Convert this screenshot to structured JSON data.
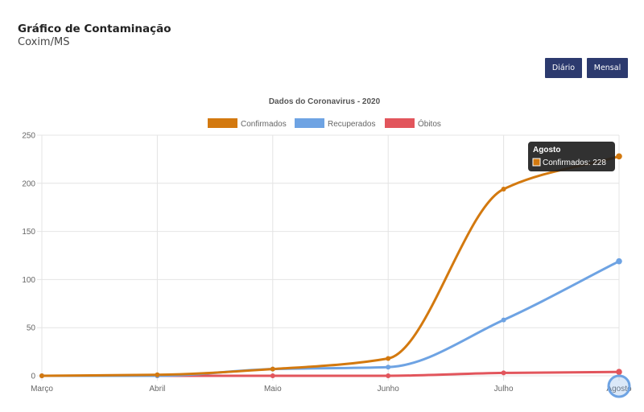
{
  "header": {
    "title": "Gráfico de Contaminação",
    "subtitle": "Coxim/MS"
  },
  "buttons": {
    "daily_label": "Diário",
    "monthly_label": "Mensal"
  },
  "colors": {
    "confirmados": "#d3790f",
    "recuperados": "#6ea3e3",
    "obitos": "#e2555c",
    "button_bg": "#2c3a6e",
    "tooltip_bg": "#1f1f1f"
  },
  "chart_data": {
    "type": "line",
    "title": "Dados do Coronavirus - 2020",
    "categories": [
      "Março",
      "Abril",
      "Maio",
      "Junho",
      "Julho",
      "Agosto"
    ],
    "series": [
      {
        "name": "Confirmados",
        "color": "#d3790f",
        "values": [
          0,
          1,
          7,
          18,
          194,
          228
        ]
      },
      {
        "name": "Recuperados",
        "color": "#6ea3e3",
        "values": [
          0,
          0,
          7,
          9,
          58,
          119
        ]
      },
      {
        "name": "Óbitos",
        "color": "#e2555c",
        "values": [
          0,
          0,
          0,
          0,
          3,
          4
        ]
      }
    ],
    "ylim": [
      0,
      250
    ],
    "yticks": [
      0,
      50,
      100,
      150,
      200,
      250
    ],
    "grid": true,
    "legend_position": "top",
    "tooltip": {
      "title": "Agosto",
      "label": "Confirmados: 228"
    }
  }
}
